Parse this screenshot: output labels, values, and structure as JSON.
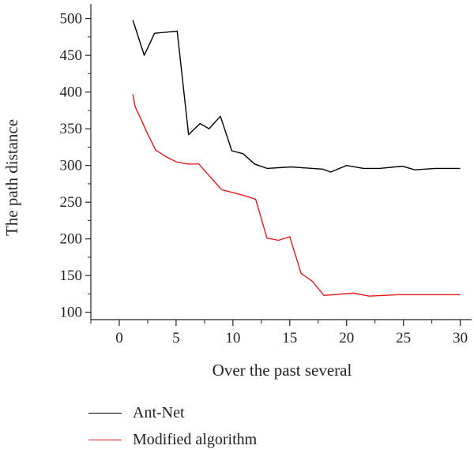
{
  "chart_data": {
    "type": "line",
    "title": "",
    "xlabel": "Over the past several",
    "ylabel": "The path distance",
    "xlim": [
      -2.5,
      31
    ],
    "ylim": [
      90,
      520
    ],
    "x_ticks": [
      0,
      5,
      10,
      15,
      20,
      25,
      30
    ],
    "y_ticks": [
      100,
      150,
      200,
      250,
      300,
      350,
      400,
      450,
      500
    ],
    "grid": false,
    "legend_position": "bottom-left",
    "series": [
      {
        "name": "Ant-Net",
        "color": "#000000",
        "x": [
          1.2,
          2.2,
          3.1,
          5.1,
          6.1,
          7.1,
          7.9,
          8.9,
          9.9,
          10.9,
          11.9,
          13.0,
          15.1,
          17.9,
          18.6,
          20.0,
          21.5,
          22.9,
          24.9,
          26.0,
          27.8,
          29.0,
          30.0
        ],
        "y": [
          498,
          450,
          480,
          483,
          342,
          357,
          350,
          367,
          320,
          316,
          302,
          296,
          298,
          295,
          291,
          300,
          296,
          296,
          299,
          294,
          296,
          296,
          296
        ]
      },
      {
        "name": "Modified algorithm",
        "color": "#e41a1c",
        "x": [
          1.2,
          1.4,
          2.0,
          2.5,
          3.2,
          4.0,
          5.0,
          6.0,
          7.0,
          9.0,
          10.0,
          11.0,
          12.0,
          13.0,
          14.0,
          15.0,
          16.0,
          17.0,
          18.0,
          20.6,
          22.0,
          24.5,
          27.0,
          30.0
        ],
        "y": [
          397,
          380,
          360,
          343,
          321,
          313,
          305,
          302,
          302,
          267,
          263,
          259,
          254,
          201,
          198,
          203,
          153,
          142,
          123,
          126,
          122,
          124,
          124,
          124
        ]
      }
    ]
  }
}
